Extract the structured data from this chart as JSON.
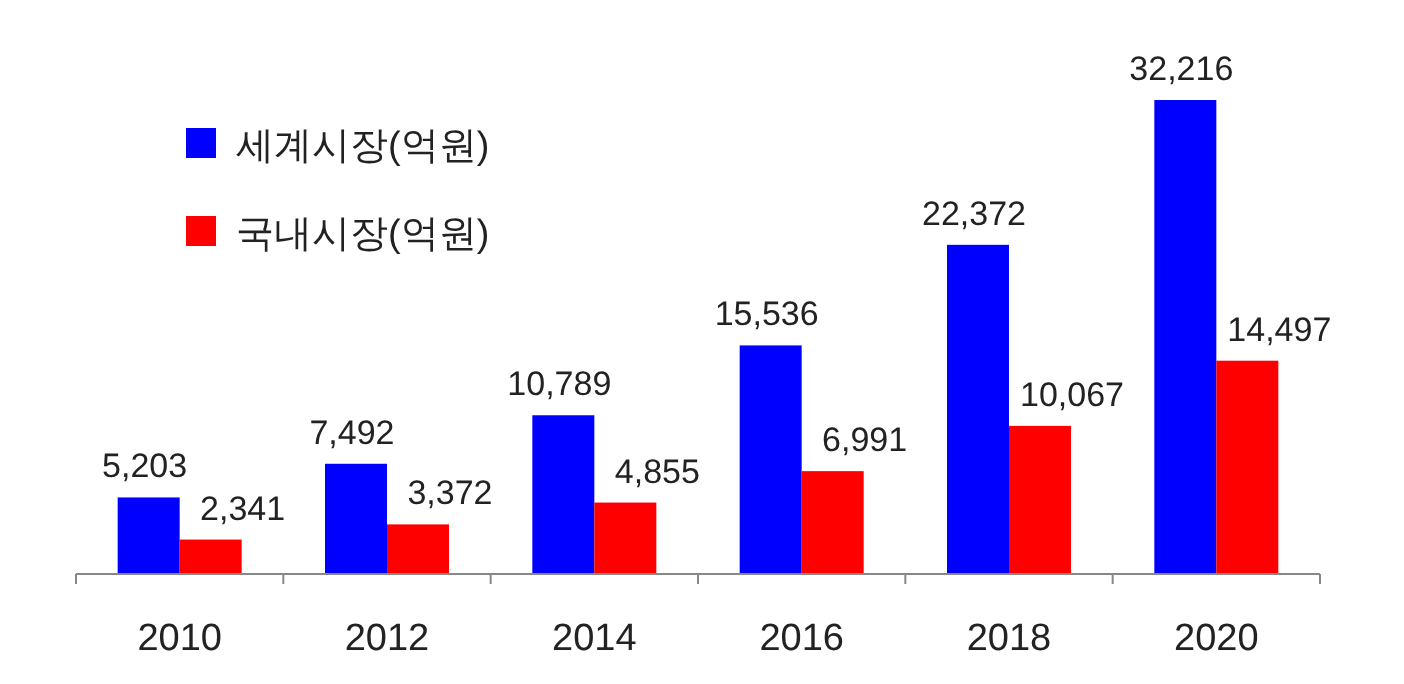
{
  "chart_data": {
    "type": "bar",
    "categories": [
      "2010",
      "2012",
      "2014",
      "2016",
      "2018",
      "2020"
    ],
    "series": [
      {
        "name": "세계시장(억원)",
        "color": "#0000ff",
        "values": [
          5203,
          7492,
          10789,
          15536,
          22372,
          32216
        ],
        "value_labels": [
          "5,203",
          "7,492",
          "10,789",
          "15,536",
          "22,372",
          "32,216"
        ]
      },
      {
        "name": "국내시장(억원)",
        "color": "#ff0000",
        "values": [
          2341,
          3372,
          4855,
          6991,
          10067,
          14497
        ],
        "value_labels": [
          "2,341",
          "3,372",
          "4,855",
          "6,991",
          "10,067",
          "14,497"
        ]
      }
    ],
    "legend": "top left",
    "grid": false
  }
}
